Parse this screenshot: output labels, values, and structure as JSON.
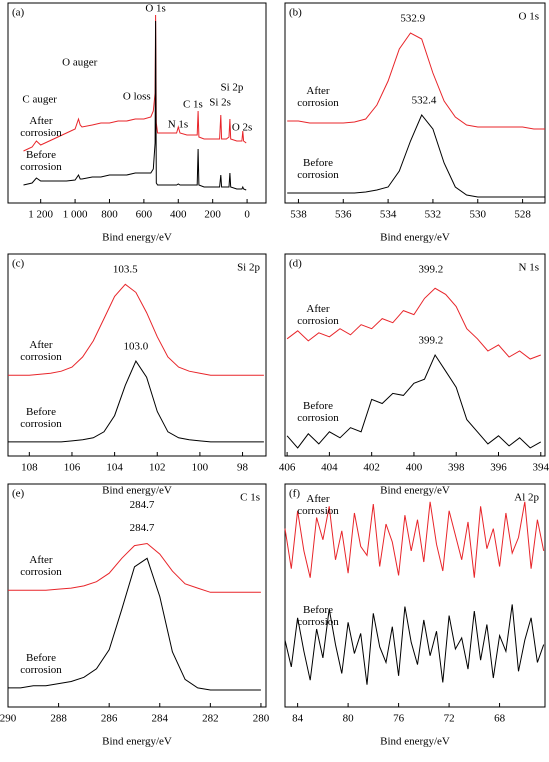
{
  "chart_data": [
    {
      "type": "line",
      "panel": "(a)",
      "xlabel": "Bind energy/eV",
      "x": [
        1300,
        1250,
        1225,
        1200,
        1150,
        1100,
        1050,
        1000,
        980,
        970,
        960,
        900,
        850,
        800,
        750,
        700,
        650,
        600,
        560,
        545,
        535,
        532,
        528,
        520,
        500,
        450,
        410,
        400,
        390,
        350,
        300,
        290,
        285,
        280,
        250,
        200,
        160,
        153,
        148,
        120,
        105,
        100,
        95,
        60,
        30,
        25,
        20,
        5
      ],
      "series": [
        {
          "name": "After corrosion",
          "color": "#e8252a",
          "values": [
            26,
            28,
            31,
            29,
            31,
            33,
            35,
            37,
            42,
            39,
            38,
            39,
            40,
            40,
            41,
            41,
            42,
            42,
            43,
            46,
            55,
            94,
            40,
            35,
            35,
            35,
            35,
            38,
            35,
            34,
            34,
            34,
            46,
            33,
            32,
            32,
            32,
            44,
            32,
            32,
            33,
            42,
            32,
            31,
            31,
            36,
            31,
            30
          ]
        },
        {
          "name": "Before corrosion",
          "color": "#000000",
          "values": [
            9,
            10,
            12.5,
            11,
            11,
            11,
            11,
            11.5,
            14,
            12,
            12,
            13,
            13,
            14,
            14,
            14,
            15,
            15,
            15,
            17,
            30,
            91,
            10,
            9,
            9,
            9,
            9,
            9.5,
            9,
            9,
            9,
            9,
            27,
            9,
            8,
            8,
            8,
            14,
            8,
            8,
            8,
            15,
            8,
            7,
            7,
            8,
            7,
            6.5
          ]
        }
      ],
      "xlim": [
        1390,
        -110
      ],
      "xticks": [
        {
          "value": 1200,
          "label": "1 200"
        },
        {
          "value": 1000,
          "label": "1 000"
        },
        800,
        600,
        400,
        200,
        0
      ],
      "ylim": [
        0,
        100
      ],
      "annotations": [
        {
          "text": "O 1s",
          "x": 532,
          "y": 97
        },
        {
          "text": "O auger",
          "x": 973,
          "y": 70
        },
        {
          "text": "C auger",
          "x": 1206,
          "y": 51.5
        },
        {
          "text": "O loss",
          "x": 641,
          "y": 53
        },
        {
          "text": "N 1s",
          "x": 402,
          "y": 39
        },
        {
          "text": "C 1s",
          "x": 315,
          "y": 49
        },
        {
          "text": "Si 2s",
          "x": 157,
          "y": 50
        },
        {
          "text": "Si 2p",
          "x": 88,
          "y": 57.5
        },
        {
          "text": "O 2s",
          "x": 29,
          "y": 37.5
        }
      ]
    },
    {
      "type": "line",
      "panel": "(b)",
      "title": "O 1s",
      "xlabel": "Bind energy/eV",
      "x": [
        538.5,
        538,
        537.5,
        537,
        536.5,
        536,
        535.5,
        535,
        534.5,
        534,
        533.5,
        533,
        532.5,
        532,
        531.5,
        531,
        530.5,
        530,
        529.5,
        529,
        528.5,
        528,
        527.5,
        527
      ],
      "series": [
        {
          "name": "After corrosion",
          "color": "#e8252a",
          "values": [
            41,
            41,
            40,
            40,
            40,
            40,
            40.5,
            42,
            49,
            61,
            77,
            85,
            82,
            65,
            51,
            43,
            39,
            38,
            38,
            38,
            38,
            38,
            37,
            37
          ]
        },
        {
          "name": "Before corrosion",
          "color": "#000000",
          "values": [
            5,
            5,
            5,
            5,
            5,
            5,
            5,
            5.5,
            6.5,
            8,
            16,
            31,
            44,
            37,
            20,
            8,
            4,
            3,
            3,
            3,
            3,
            3,
            3,
            3
          ]
        }
      ],
      "xlim": [
        538.6,
        527
      ],
      "xticks": [
        538,
        536,
        534,
        532,
        530,
        528
      ],
      "ylim": [
        0,
        100
      ],
      "annotations": [
        {
          "text": "532.9",
          "x": 532.9,
          "y": 92
        },
        {
          "text": "532.4",
          "x": 532.4,
          "y": 51
        }
      ]
    },
    {
      "type": "line",
      "panel": "(c)",
      "title": "Si 2p",
      "xlabel": "Bind energy/eV",
      "x": [
        109,
        108.5,
        108,
        107.5,
        107,
        106.5,
        106,
        105.5,
        105,
        104.5,
        104,
        103.5,
        103,
        102.5,
        102,
        101.5,
        101,
        100.5,
        100,
        99.5,
        99,
        98.5,
        98,
        97.5,
        97
      ],
      "series": [
        {
          "name": "After corrosion",
          "color": "#e8252a",
          "values": [
            40,
            40,
            40,
            40.5,
            41,
            42,
            44,
            49,
            57,
            68,
            79,
            85,
            81,
            71,
            59,
            49,
            44,
            42,
            41,
            40,
            40,
            40,
            40,
            40,
            40
          ]
        },
        {
          "name": "Before corrosion",
          "color": "#000000",
          "values": [
            7,
            7,
            7,
            7,
            7,
            7,
            7.5,
            8,
            9,
            12,
            20,
            35,
            47,
            39,
            22,
            12,
            9,
            8,
            7.5,
            7,
            7,
            7,
            7,
            7,
            7
          ]
        }
      ],
      "xlim": [
        109,
        96.9
      ],
      "xticks": [
        108,
        106,
        104,
        102,
        100,
        98
      ],
      "ylim": [
        0,
        100
      ],
      "annotations": [
        {
          "text": "103.5",
          "x": 103.5,
          "y": 92
        },
        {
          "text": "103.0",
          "x": 103.0,
          "y": 54
        }
      ]
    },
    {
      "type": "line",
      "panel": "(d)",
      "title": "N 1s",
      "xlabel": "Bind energy/eV",
      "x": [
        406,
        405.5,
        405,
        404.5,
        404,
        403.5,
        403,
        402.5,
        402,
        401.5,
        401,
        400.5,
        400,
        399.5,
        399,
        398.5,
        398,
        397.5,
        397,
        396.5,
        396,
        395.5,
        395,
        394.5,
        394
      ],
      "series": [
        {
          "name": "After corrosion",
          "color": "#e8252a",
          "values": [
            58,
            62,
            57,
            61,
            59,
            63,
            60,
            65,
            63,
            68,
            66,
            72,
            70,
            78,
            83,
            80,
            74,
            63,
            58,
            52,
            55,
            49,
            52,
            48,
            50
          ]
        },
        {
          "name": "Before corrosion",
          "color": "#000000",
          "values": [
            10,
            4,
            11,
            6,
            12,
            9,
            14,
            12,
            28,
            26,
            31,
            30,
            36,
            38,
            50,
            42,
            34,
            18,
            12,
            6,
            10,
            5,
            9,
            4,
            7
          ]
        }
      ],
      "xlim": [
        406.1,
        393.8
      ],
      "xticks": [
        406,
        404,
        402,
        400,
        398,
        396,
        394
      ],
      "ylim": [
        0,
        100
      ],
      "annotations": [
        {
          "text": "399.2",
          "x": 399.2,
          "y": 92
        },
        {
          "text": "399.2",
          "x": 399.2,
          "y": 57
        }
      ]
    },
    {
      "type": "line",
      "panel": "(e)",
      "title": "C 1s",
      "xlabel": "Bind energy/eV",
      "x": [
        290,
        289.5,
        289,
        288.5,
        288,
        287.5,
        287,
        286.5,
        286,
        285.5,
        285,
        284.5,
        284,
        283.5,
        283,
        282.5,
        282,
        281.5,
        281,
        280.5,
        280
      ],
      "series": [
        {
          "name": "After corrosion",
          "color": "#e8252a",
          "values": [
            55,
            55,
            55,
            55,
            55.5,
            56,
            57,
            59,
            63,
            70,
            76,
            77,
            72,
            64,
            58,
            56,
            54,
            54,
            54,
            54,
            54
          ]
        },
        {
          "name": "Before corrosion",
          "color": "#000000",
          "values": [
            9,
            9,
            10,
            10,
            11,
            12,
            14,
            18,
            27,
            46,
            66,
            70,
            52,
            26,
            13,
            9,
            8,
            8,
            8,
            8,
            8
          ]
        }
      ],
      "xlim": [
        290,
        279.8
      ],
      "xticks": [
        290,
        288,
        286,
        284,
        282,
        280
      ],
      "ylim": [
        0,
        105
      ],
      "annotations": [
        {
          "text": "284.7",
          "x": 284.7,
          "y": 95
        },
        {
          "text": "284.7",
          "x": 284.7,
          "y": 84
        }
      ]
    },
    {
      "type": "line",
      "panel": "(f)",
      "title": "Al 2p",
      "xlabel": "Bind energy/eV",
      "x": [
        85,
        84.5,
        84,
        83.5,
        83,
        82.5,
        82,
        81.5,
        81,
        80.5,
        80,
        79.5,
        79,
        78.5,
        78,
        77.5,
        77,
        76.5,
        76,
        75.5,
        75,
        74.5,
        74,
        73.5,
        73,
        72.5,
        72,
        71.5,
        71,
        70.5,
        70,
        69.5,
        69,
        68.5,
        68,
        67.5,
        67,
        66.5,
        66,
        65.5,
        65,
        64.5
      ],
      "series": [
        {
          "name": "After corrosion",
          "color": "#e8252a",
          "values": [
            80,
            62,
            88,
            70,
            58,
            85,
            75,
            90,
            66,
            79,
            60,
            87,
            72,
            68,
            91,
            63,
            82,
            74,
            59,
            86,
            70,
            84,
            65,
            92,
            73,
            61,
            88,
            77,
            66,
            83,
            58,
            90,
            71,
            80,
            63,
            87,
            69,
            76,
            92,
            62,
            84,
            70
          ]
        },
        {
          "name": "Before corrosion",
          "color": "#000000",
          "values": [
            30,
            18,
            40,
            25,
            12,
            35,
            22,
            44,
            28,
            15,
            38,
            24,
            33,
            10,
            42,
            27,
            20,
            36,
            14,
            45,
            29,
            19,
            39,
            23,
            34,
            11,
            41,
            26,
            31,
            17,
            43,
            21,
            37,
            13,
            32,
            25,
            46,
            16,
            30,
            40,
            20,
            28
          ]
        }
      ],
      "xlim": [
        85,
        64.4
      ],
      "xticks": [
        84,
        80,
        76,
        72,
        68
      ],
      "ylim": [
        0,
        100
      ],
      "annotations": []
    }
  ]
}
